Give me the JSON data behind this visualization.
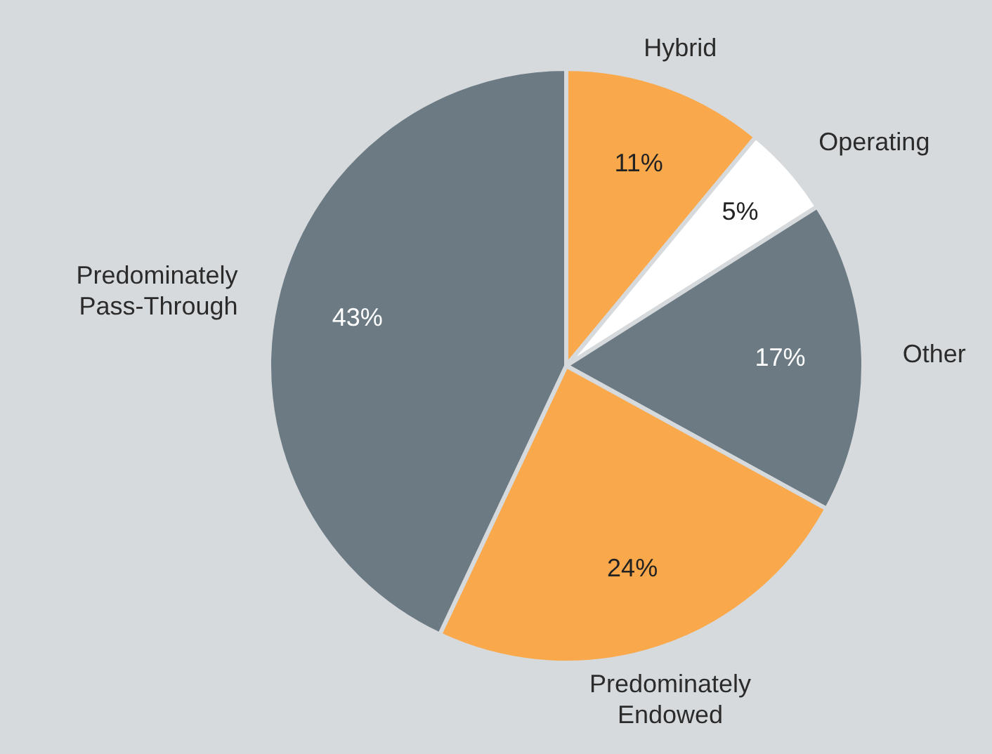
{
  "chart_data": {
    "type": "pie",
    "categories": [
      "Hybrid",
      "Operating",
      "Other",
      "Predominately Endowed",
      "Predominately Pass-Through"
    ],
    "values": [
      11,
      5,
      17,
      24,
      43
    ],
    "colors": [
      "#f9a94b",
      "#ffffff",
      "#6c7a83",
      "#f9a94b",
      "#6c7a83"
    ],
    "value_labels": [
      "11%",
      "5%",
      "17%",
      "24%",
      "43%"
    ],
    "legend": false
  }
}
